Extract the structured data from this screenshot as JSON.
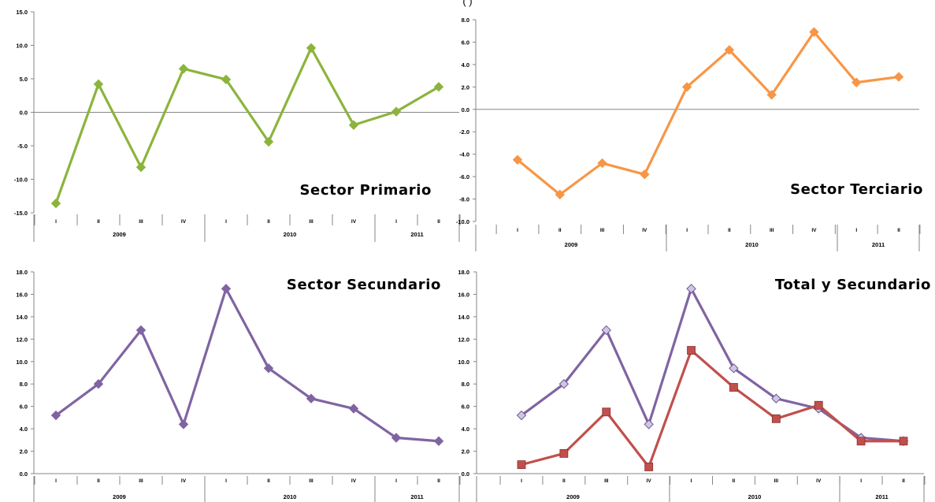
{
  "page": {
    "partial_header": "(                                                                  )"
  },
  "chart_data": [
    {
      "type": "line",
      "title": "Sector Primario",
      "x_groups": [
        "2009",
        "2010",
        "2011"
      ],
      "categories": [
        "I",
        "II",
        "III",
        "IV",
        "I",
        "II",
        "III",
        "IV",
        "I",
        "II"
      ],
      "ylim": [
        -15,
        15
      ],
      "yticks": [
        "15.0",
        "10.0",
        "5.0",
        "0.0",
        "-5.0",
        "-10.0",
        "-15.0"
      ],
      "series": [
        {
          "values": [
            -13.6,
            4.2,
            -8.2,
            6.5,
            4.9,
            -4.4,
            9.6,
            -1.9,
            0.1,
            3.8
          ],
          "color": "#8cb43c",
          "marker": "diamond"
        }
      ],
      "title_position": "bottom-right"
    },
    {
      "type": "line",
      "title": "Sector Terciario",
      "x_groups": [
        "2009",
        "2010",
        "2011"
      ],
      "categories": [
        "I",
        "II",
        "III",
        "IV",
        "I",
        "II",
        "III",
        "IV",
        "I",
        "II"
      ],
      "ylim": [
        -10,
        8
      ],
      "yticks": [
        "8.0",
        "6.0",
        "4.0",
        "2.0",
        "0.0",
        "-2.0",
        "-4.0",
        "-6.0",
        "-8.0",
        "-10.0"
      ],
      "series": [
        {
          "values": [
            -4.5,
            -7.6,
            -4.8,
            -5.8,
            2.0,
            5.3,
            1.3,
            6.9,
            2.4,
            2.9
          ],
          "color": "#f79646",
          "marker": "diamond"
        }
      ],
      "title_position": "bottom-right"
    },
    {
      "type": "line",
      "title": "Sector Secundario",
      "x_groups": [
        "2009",
        "2010",
        "2011"
      ],
      "categories": [
        "I",
        "II",
        "III",
        "IV",
        "I",
        "II",
        "III",
        "IV",
        "I",
        "II"
      ],
      "ylim": [
        0,
        18
      ],
      "yticks": [
        "18.0",
        "16.0",
        "14.0",
        "12.0",
        "10.0",
        "8.0",
        "6.0",
        "4.0",
        "2.0",
        "0.0"
      ],
      "series": [
        {
          "values": [
            5.2,
            8.0,
            12.8,
            4.4,
            16.5,
            9.4,
            6.7,
            5.8,
            3.2,
            2.9
          ],
          "color": "#8064a2",
          "marker": "diamond"
        }
      ],
      "title_position": "top-right"
    },
    {
      "type": "line",
      "title": "Total y Secundario",
      "x_groups": [
        "2009",
        "2010",
        "2011"
      ],
      "categories": [
        "I",
        "II",
        "III",
        "IV",
        "I",
        "II",
        "III",
        "IV",
        "I",
        "II"
      ],
      "ylim": [
        0,
        18
      ],
      "yticks": [
        "18.0",
        "16.0",
        "14.0",
        "12.0",
        "10.0",
        "8.0",
        "6.0",
        "4.0",
        "2.0",
        "0.0"
      ],
      "series": [
        {
          "values": [
            5.2,
            8.0,
            12.8,
            4.4,
            16.5,
            9.4,
            6.7,
            5.8,
            3.2,
            2.9
          ],
          "color": "#8064a2",
          "marker": "diamond-light"
        },
        {
          "values": [
            0.8,
            1.8,
            5.5,
            0.6,
            11.0,
            7.7,
            4.9,
            6.1,
            2.9,
            2.9
          ],
          "color": "#c0504d",
          "marker": "square"
        }
      ],
      "title_position": "top-right"
    }
  ]
}
